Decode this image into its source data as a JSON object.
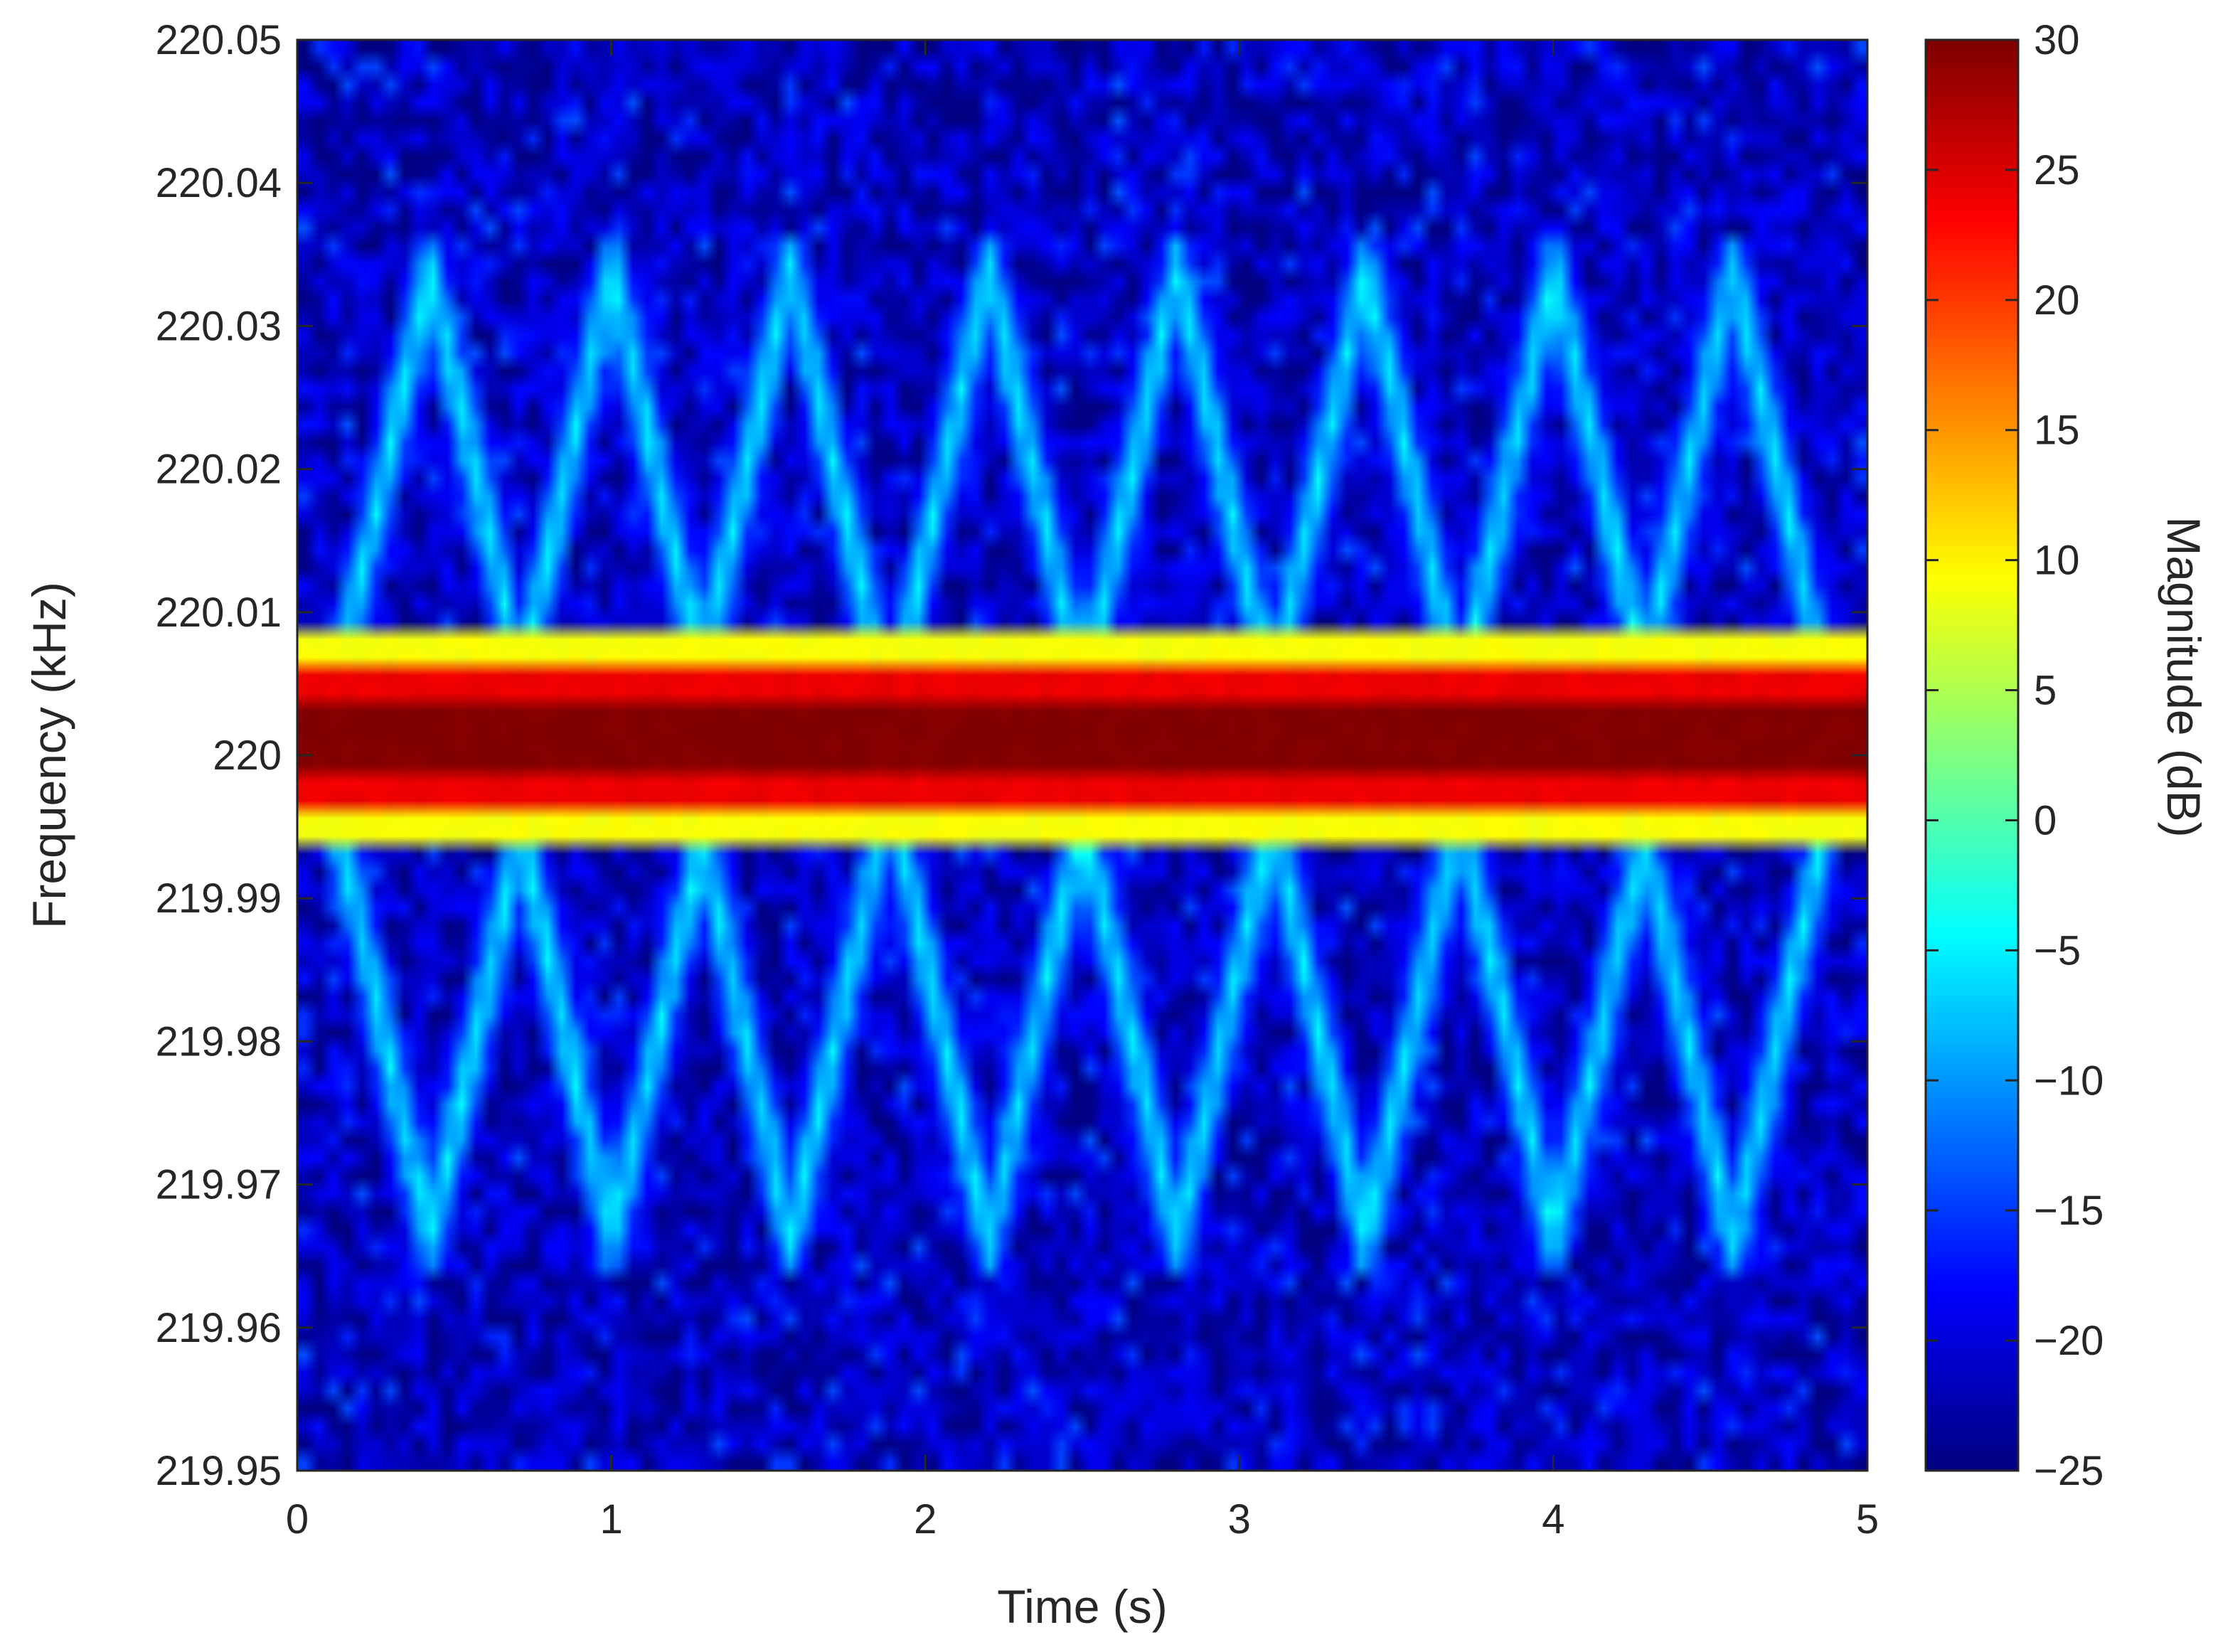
{
  "chart_data": {
    "type": "heatmap",
    "title": "",
    "xlabel": "Time (s)",
    "ylabel": "Frequency (kHz)",
    "colorbar_label": "Magnitude (dB)",
    "colormap": "jet",
    "xlim": [
      0,
      5
    ],
    "ylim": [
      219.95,
      220.05
    ],
    "clim": [
      -25,
      30
    ],
    "x_ticks": [
      0,
      1,
      2,
      3,
      4,
      5
    ],
    "x_tick_labels": [
      "0",
      "1",
      "2",
      "3",
      "4",
      "5"
    ],
    "y_ticks": [
      219.95,
      219.96,
      219.97,
      219.98,
      219.99,
      220,
      220.01,
      220.02,
      220.03,
      220.04,
      220.05
    ],
    "y_tick_labels": [
      "219.95",
      "219.96",
      "219.97",
      "219.98",
      "219.99",
      "220",
      "220.01",
      "220.02",
      "220.03",
      "220.04",
      "220.05"
    ],
    "colorbar_ticks": [
      -25,
      -20,
      -15,
      -10,
      -5,
      0,
      5,
      10,
      15,
      20,
      25,
      30
    ],
    "colorbar_tick_labels": [
      "−25",
      "−20",
      "−15",
      "−10",
      "−5",
      "0",
      "5",
      "10",
      "15",
      "20",
      "25",
      "30"
    ],
    "carrier": {
      "frequency_khz": 220,
      "bands": [
        {
          "low": 220.0015,
          "high": 220.0035,
          "db": 30
        },
        {
          "low": 220.0035,
          "high": 220.006,
          "db": 24
        },
        {
          "low": 220.006,
          "high": 220.0085,
          "db": 9
        },
        {
          "low": 219.9985,
          "high": 220.0015,
          "db": 30
        },
        {
          "low": 219.996,
          "high": 219.9985,
          "db": 24
        },
        {
          "low": 219.9935,
          "high": 219.996,
          "db": 9
        }
      ]
    },
    "sweep": {
      "period_s": 0.62,
      "freq_min_khz": 219.967,
      "freq_max_khz": 220.034,
      "apex_times_s": [
        0.42,
        1.0,
        1.57,
        2.2,
        2.8,
        3.4,
        4.0,
        4.57
      ],
      "peak_db": -5,
      "background_db": -25
    },
    "grid": false,
    "legend": "colorbar-right"
  }
}
